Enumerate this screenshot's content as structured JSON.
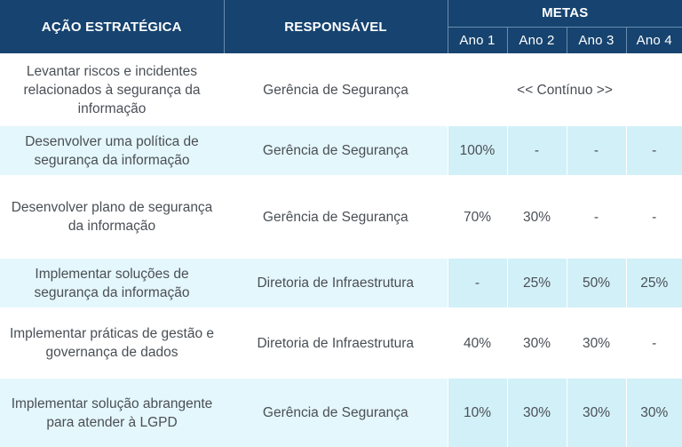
{
  "header": {
    "col_action": "AÇÃO ESTRATÉGICA",
    "col_responsible": "RESPONSÁVEL",
    "col_goals": "METAS",
    "years": [
      "Ano 1",
      "Ano 2",
      "Ano 3",
      "Ano 4"
    ]
  },
  "rows": [
    {
      "action": "Levantar riscos e incidentes relacionados à segurança da informação",
      "responsible": "Gerência de Segurança",
      "continuous": "<< Contínuo >>"
    },
    {
      "action": "Desenvolver uma política de segurança da informação",
      "responsible": "Gerência de Segurança",
      "goals": [
        "100%",
        "-",
        "-",
        "-"
      ]
    },
    {
      "action": "Desenvolver plano de segurança da informação",
      "responsible": "Gerência de Segurança",
      "goals": [
        "70%",
        "30%",
        "-",
        "-"
      ]
    },
    {
      "action": "Implementar soluções de segurança da informação",
      "responsible": "Diretoria de Infraestrutura",
      "goals": [
        "-",
        "25%",
        "50%",
        "25%"
      ]
    },
    {
      "action": "Implementar práticas de gestão e governança de dados",
      "responsible": "Diretoria de Infraestrutura",
      "goals": [
        "40%",
        "30%",
        "30%",
        "-"
      ]
    },
    {
      "action": "Implementar solução abrangente para atender à LGPD",
      "responsible": "Gerência de Segurança",
      "goals": [
        "10%",
        "30%",
        "30%",
        "30%"
      ]
    }
  ]
}
